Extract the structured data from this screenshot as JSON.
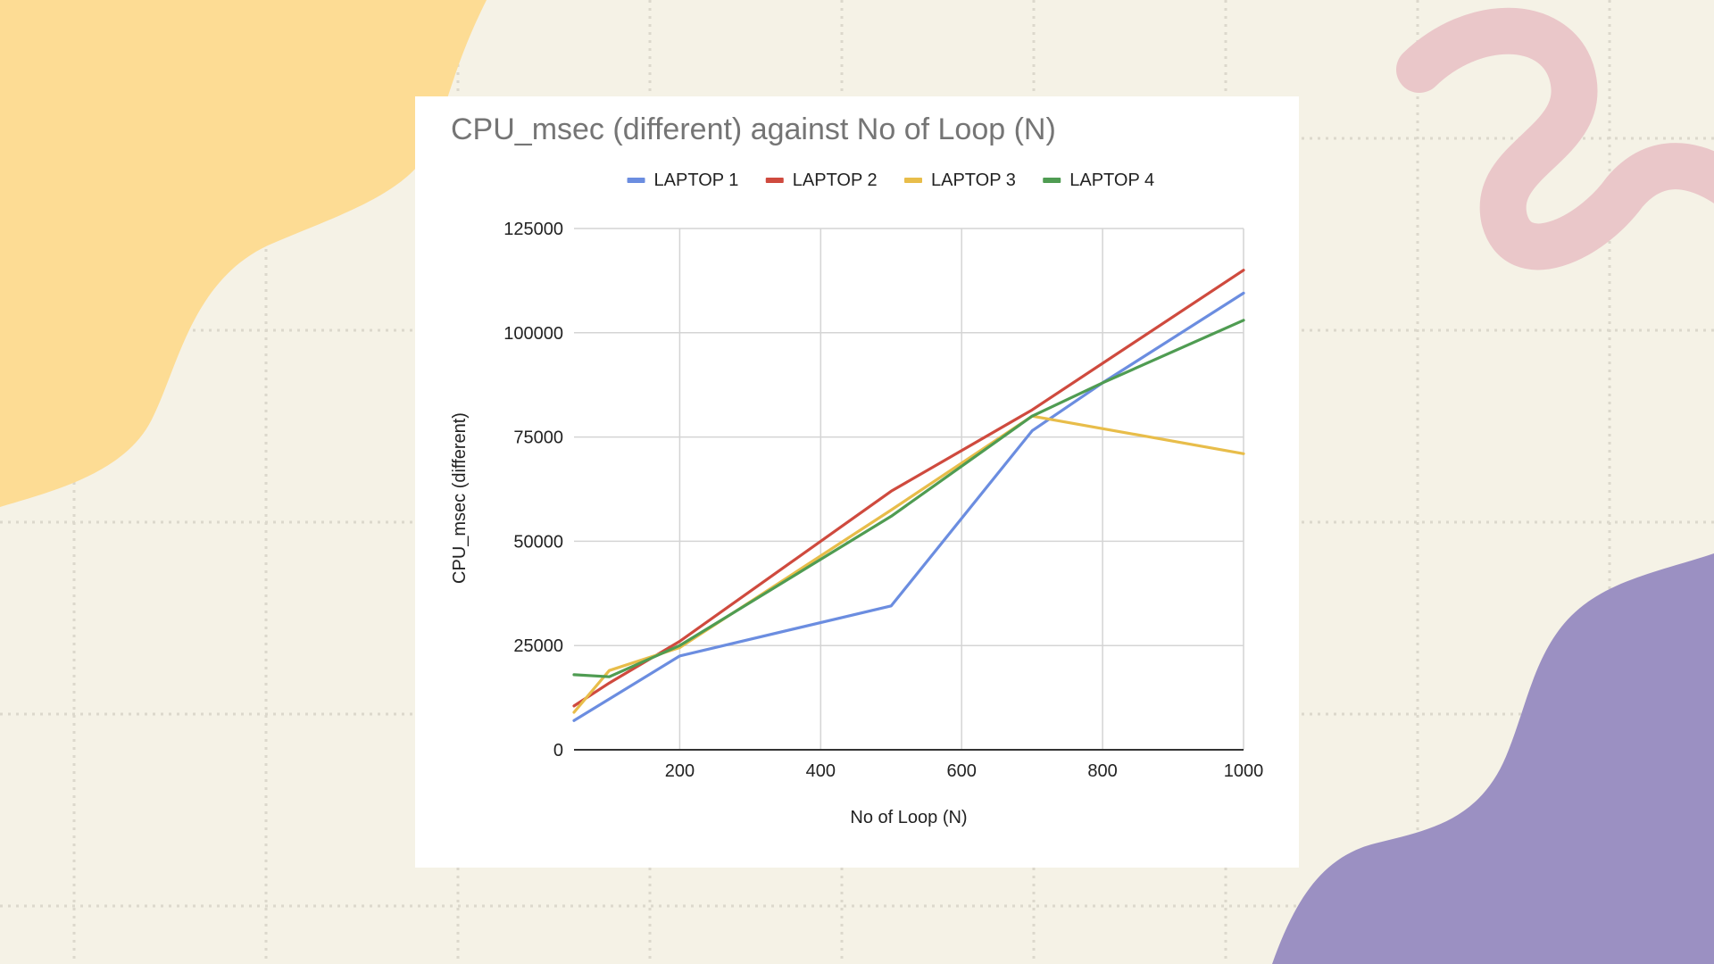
{
  "background": {
    "base_color": "#f5f2e6",
    "grid_color": "#dcd8cc",
    "blob_yellow": "#fddc94",
    "blob_purple": "#9b90c2",
    "squiggle_pink": "#eac7c9"
  },
  "chart_data": {
    "type": "line",
    "title": "CPU_msec (different) against No of Loop (N)",
    "xlabel": "No of Loop (N)",
    "ylabel": "CPU_msec (different)",
    "xlim": [
      50,
      1000
    ],
    "ylim": [
      0,
      125000
    ],
    "x_ticks": [
      200,
      400,
      600,
      800,
      1000
    ],
    "y_ticks": [
      0,
      25000,
      50000,
      75000,
      100000,
      125000
    ],
    "grid": true,
    "legend_position": "top",
    "series": [
      {
        "name": "LAPTOP 1",
        "color": "#6b8de0",
        "x": [
          50,
          200,
          500,
          700,
          800,
          1000
        ],
        "y": [
          7000,
          22500,
          34500,
          76500,
          88000,
          109500
        ]
      },
      {
        "name": "LAPTOP 2",
        "color": "#cf4a3e",
        "x": [
          50,
          100,
          200,
          500,
          700,
          1000
        ],
        "y": [
          10500,
          16000,
          26000,
          62000,
          81500,
          115000
        ]
      },
      {
        "name": "LAPTOP 3",
        "color": "#e8bd4a",
        "x": [
          50,
          100,
          200,
          500,
          700,
          1000
        ],
        "y": [
          9000,
          19000,
          24500,
          57500,
          80000,
          71000
        ]
      },
      {
        "name": "LAPTOP 4",
        "color": "#4f9c52",
        "x": [
          50,
          100,
          200,
          500,
          700,
          800,
          1000
        ],
        "y": [
          18000,
          17500,
          25000,
          56000,
          80000,
          88000,
          103000
        ]
      }
    ]
  }
}
